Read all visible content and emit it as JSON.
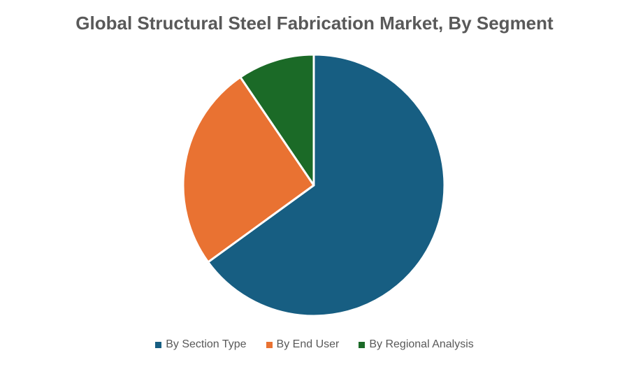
{
  "chart_data": {
    "type": "pie",
    "title": "Global Structural Steel Fabrication Market, By Segment",
    "categories": [
      "By Section Type",
      "By End User",
      "By Regional Analysis"
    ],
    "values": [
      65,
      25.5,
      9.5
    ],
    "colors": [
      "#175e82",
      "#e97232",
      "#1b6a27"
    ],
    "legend_position": "bottom"
  }
}
